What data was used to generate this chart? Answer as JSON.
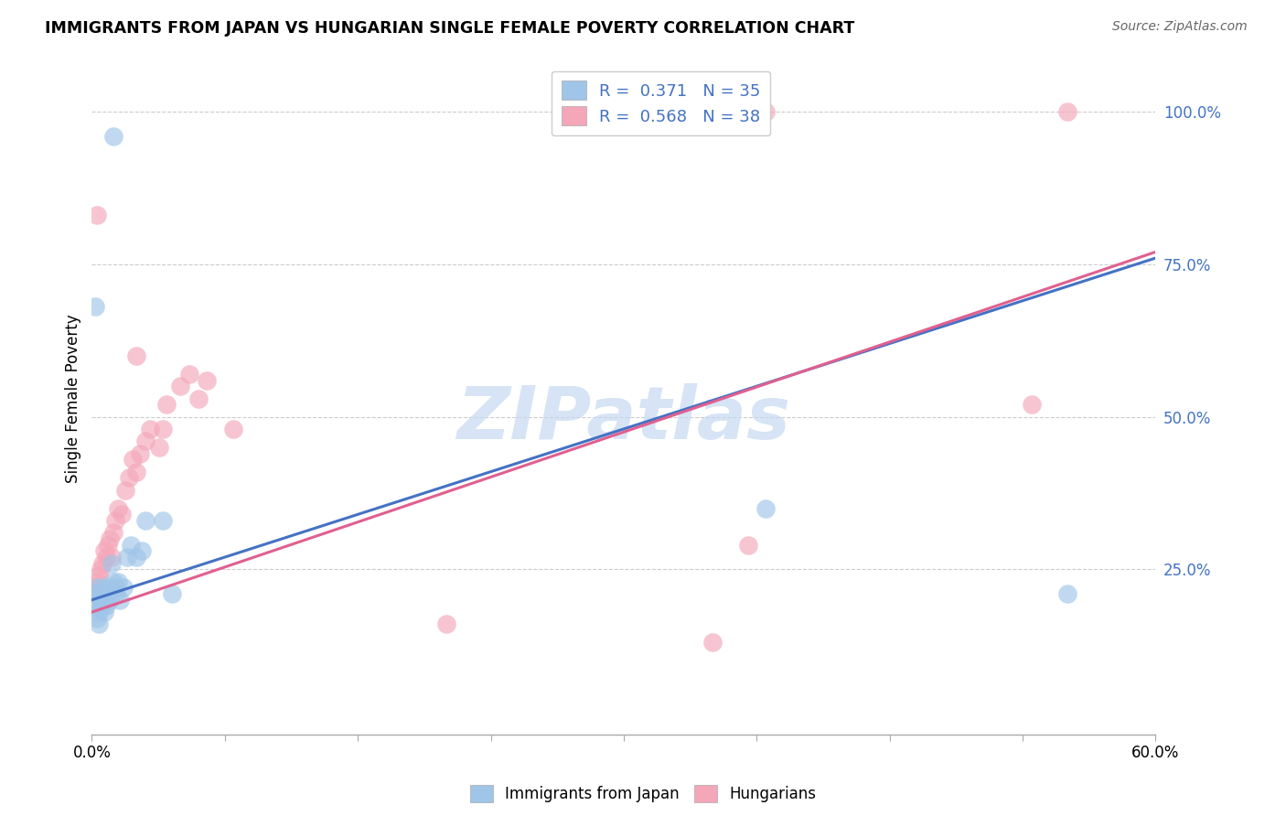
{
  "title": "IMMIGRANTS FROM JAPAN VS HUNGARIAN SINGLE FEMALE POVERTY CORRELATION CHART",
  "source": "Source: ZipAtlas.com",
  "ylabel": "Single Female Poverty",
  "watermark": "ZIPatlas",
  "legend_line1": "R =  0.371   N = 35",
  "legend_line2": "R =  0.568   N = 38",
  "legend_bottom": [
    "Immigrants from Japan",
    "Hungarians"
  ],
  "ytick_vals": [
    0.25,
    0.5,
    0.75,
    1.0
  ],
  "ytick_labels": [
    "25.0%",
    "50.0%",
    "75.0%",
    "100.0%"
  ],
  "xtick_vals": [
    0.0,
    0.075,
    0.15,
    0.225,
    0.3,
    0.375,
    0.45,
    0.525,
    0.6
  ],
  "xlim": [
    0.0,
    0.6
  ],
  "ylim": [
    -0.02,
    1.08
  ],
  "blue_scatter_color": "#9fc5e8",
  "pink_scatter_color": "#f4a7b9",
  "blue_line_color": "#4472c4",
  "pink_line_color": "#e06090",
  "watermark_color": "#c5d9f1",
  "japan_x": [
    0.001,
    0.002,
    0.002,
    0.003,
    0.003,
    0.004,
    0.004,
    0.005,
    0.005,
    0.006,
    0.006,
    0.007,
    0.007,
    0.008,
    0.009,
    0.01,
    0.01,
    0.011,
    0.012,
    0.013,
    0.014,
    0.015,
    0.016,
    0.018,
    0.02,
    0.022,
    0.025,
    0.028,
    0.04,
    0.045,
    0.38,
    0.55,
    0.002,
    0.012,
    0.03
  ],
  "japan_y": [
    0.2,
    0.19,
    0.21,
    0.22,
    0.17,
    0.16,
    0.18,
    0.2,
    0.21,
    0.19,
    0.22,
    0.2,
    0.18,
    0.19,
    0.21,
    0.2,
    0.22,
    0.26,
    0.23,
    0.22,
    0.21,
    0.23,
    0.2,
    0.22,
    0.27,
    0.29,
    0.27,
    0.28,
    0.33,
    0.21,
    0.35,
    0.21,
    0.68,
    0.96,
    0.33
  ],
  "hungarian_x": [
    0.001,
    0.002,
    0.003,
    0.004,
    0.005,
    0.006,
    0.007,
    0.008,
    0.009,
    0.01,
    0.011,
    0.012,
    0.013,
    0.015,
    0.017,
    0.019,
    0.021,
    0.023,
    0.025,
    0.027,
    0.03,
    0.033,
    0.038,
    0.04,
    0.042,
    0.05,
    0.055,
    0.06,
    0.065,
    0.08,
    0.2,
    0.35,
    0.37,
    0.38,
    0.53,
    0.55,
    0.003,
    0.025
  ],
  "hungarian_y": [
    0.22,
    0.21,
    0.23,
    0.24,
    0.25,
    0.26,
    0.28,
    0.27,
    0.29,
    0.3,
    0.27,
    0.31,
    0.33,
    0.35,
    0.34,
    0.38,
    0.4,
    0.43,
    0.41,
    0.44,
    0.46,
    0.48,
    0.45,
    0.48,
    0.52,
    0.55,
    0.57,
    0.53,
    0.56,
    0.48,
    0.16,
    0.13,
    0.29,
    1.0,
    0.52,
    1.0,
    0.83,
    0.6
  ],
  "blue_line_x": [
    0.0,
    0.6
  ],
  "blue_line_y": [
    0.2,
    0.76
  ],
  "pink_line_x": [
    0.0,
    0.6
  ],
  "pink_line_y": [
    0.18,
    0.77
  ]
}
